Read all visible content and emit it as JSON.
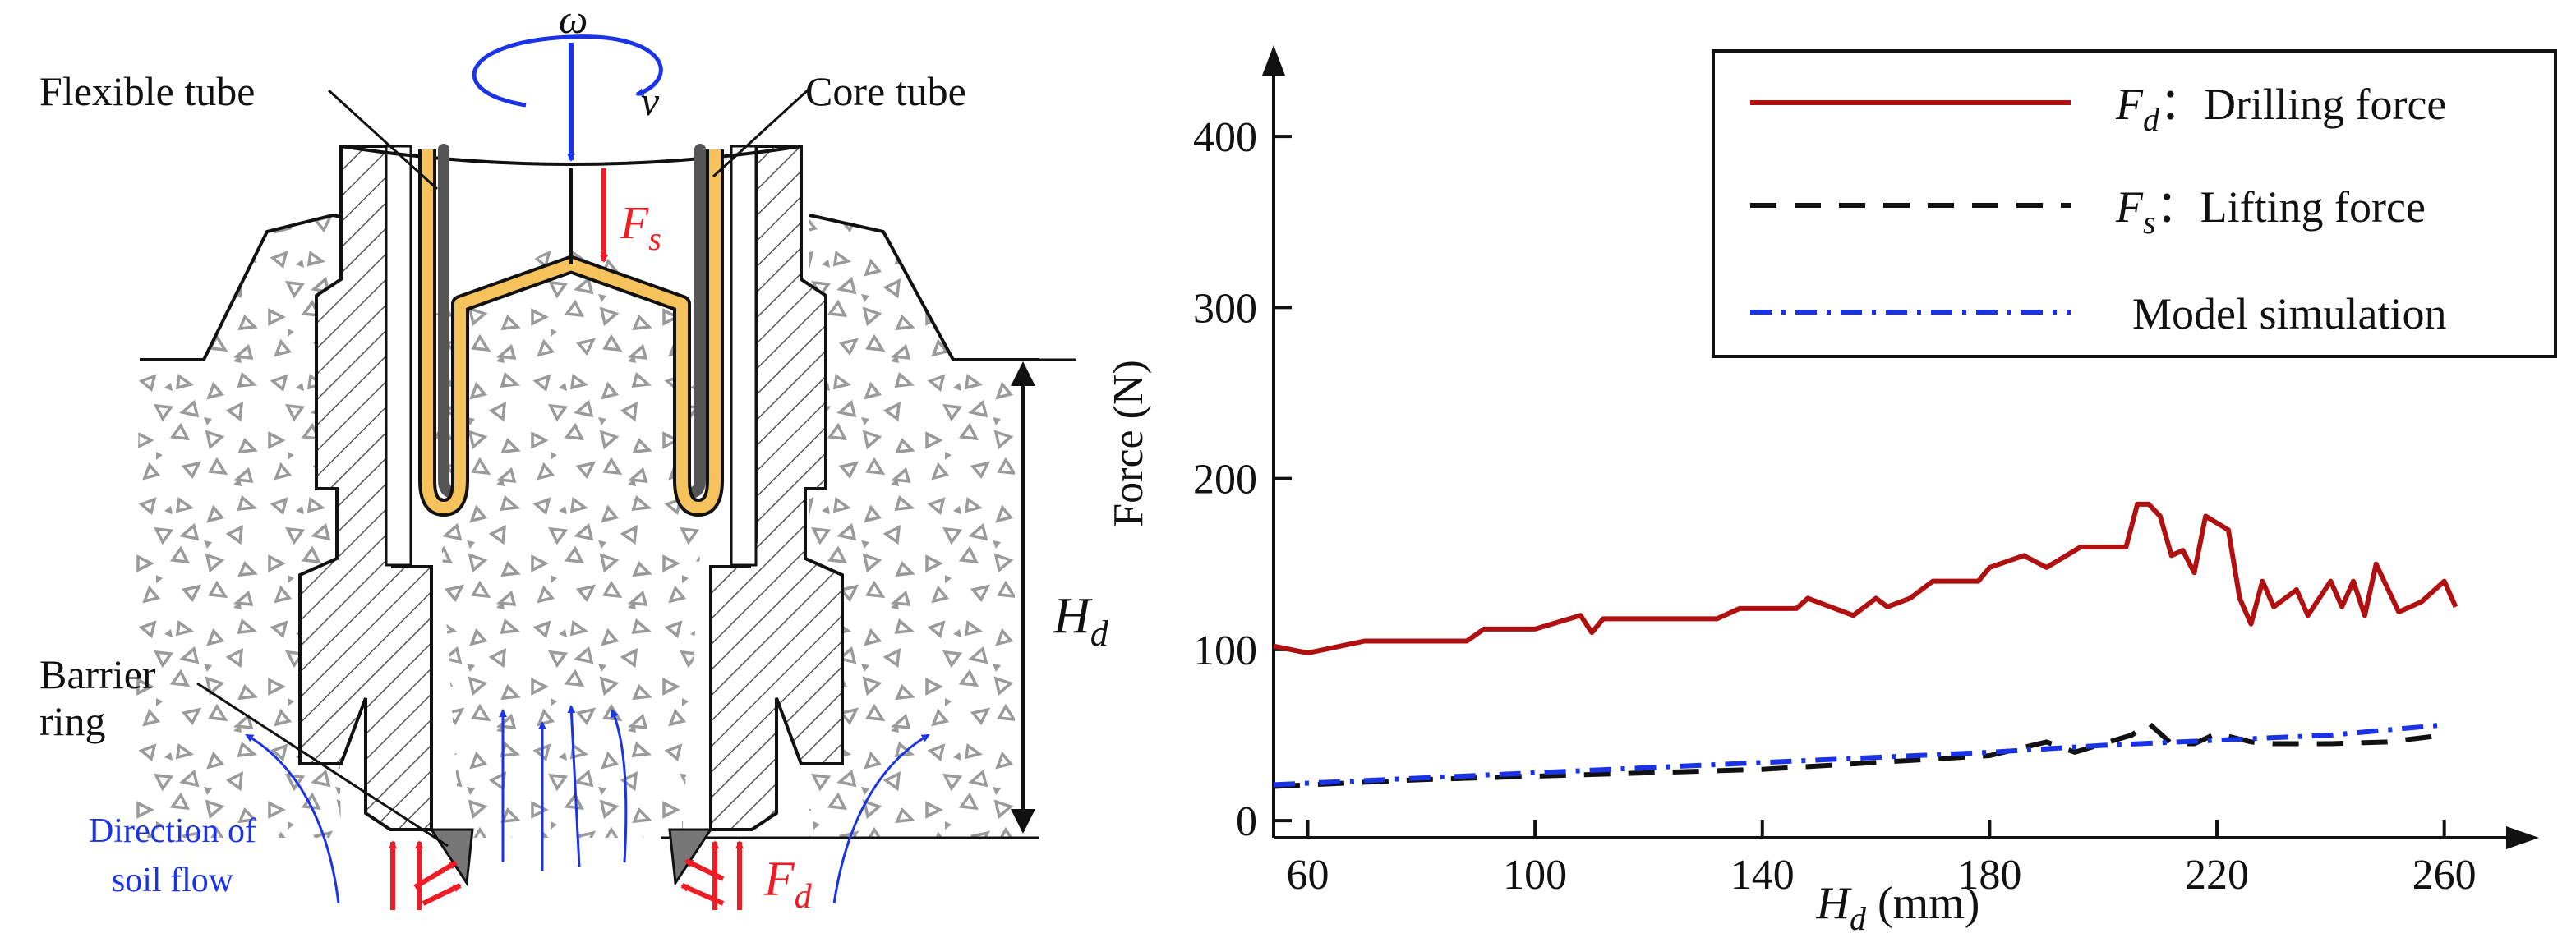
{
  "diagram": {
    "labels": {
      "flexible_tube": "Flexible tube",
      "core_tube": "Core tube",
      "barrier_ring_1": "Barrier",
      "barrier_ring_2": "ring",
      "omega": "ω",
      "v": "v",
      "fs_main": "F",
      "fs_sub": "s",
      "fd_main": "F",
      "fd_sub": "d",
      "hd_main": "H",
      "hd_sub": "d",
      "soil_flow_1": "Direction of",
      "soil_flow_2": "soil flow"
    },
    "colors": {
      "force_arrow": "#ee1c25",
      "motion_arrow": "#1a33e6",
      "core_tube": "#f5c25c",
      "flexible_tube": "#555555",
      "soil": "#9a9a9a"
    }
  },
  "chart_data": {
    "type": "line",
    "title": "",
    "xlabel_main": "H",
    "xlabel_sub": "d",
    "xlabel_unit": " (mm)",
    "ylabel": "Force (N)",
    "xlim": [
      54,
      268
    ],
    "ylim": [
      -10,
      450
    ],
    "xticks": [
      60,
      100,
      140,
      180,
      220,
      260
    ],
    "yticks": [
      0,
      100,
      200,
      300,
      400
    ],
    "legend_position": "top-right",
    "series": [
      {
        "name": "Drilling force",
        "legend_symbol": "F",
        "legend_sub": "d",
        "legend_sep": "：",
        "color": "#b01010",
        "dash": "",
        "x": [
          54,
          60,
          70,
          80,
          88,
          91,
          100,
          108,
          110,
          112,
          120,
          132,
          136,
          146,
          148,
          156,
          160,
          162,
          166,
          170,
          178,
          180,
          186,
          190,
          196,
          204,
          206,
          208,
          210,
          212,
          214,
          216,
          218,
          222,
          224,
          226,
          228,
          230,
          234,
          236,
          240,
          242,
          244,
          246,
          248,
          252,
          256,
          260,
          262
        ],
        "y": [
          102,
          98,
          105,
          105,
          105,
          112,
          112,
          120,
          110,
          118,
          118,
          118,
          124,
          124,
          130,
          120,
          130,
          125,
          130,
          140,
          140,
          148,
          155,
          148,
          160,
          160,
          185,
          185,
          178,
          155,
          158,
          145,
          178,
          170,
          130,
          115,
          140,
          125,
          135,
          120,
          140,
          125,
          140,
          120,
          150,
          122,
          128,
          140,
          125
        ]
      },
      {
        "name": "Lifting force",
        "legend_symbol": "F",
        "legend_sub": "s",
        "legend_sep": "：",
        "color": "#111111",
        "dash": "32,22",
        "x": [
          54,
          80,
          100,
          120,
          140,
          160,
          180,
          190,
          195,
          200,
          205,
          208,
          212,
          216,
          220,
          226,
          230,
          240,
          250,
          260
        ],
        "y": [
          20,
          24,
          26,
          28,
          30,
          34,
          38,
          46,
          40,
          45,
          50,
          57,
          45,
          45,
          51,
          46,
          45,
          45,
          46,
          50
        ]
      },
      {
        "name": "Model simulation",
        "legend_symbol": "",
        "legend_sub": "",
        "legend_sep": "",
        "color": "#1a33e6",
        "dash": "26,12,5,12",
        "x": [
          54,
          100,
          140,
          180,
          200,
          220,
          240,
          260
        ],
        "y": [
          21,
          28,
          34,
          40,
          44,
          47,
          50,
          56
        ]
      }
    ]
  }
}
